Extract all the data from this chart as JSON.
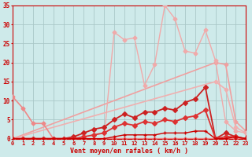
{
  "bg_color": "#ceeaea",
  "grid_color": "#aac8c8",
  "xlabel": "Vent moyen/en rafales ( km/h )",
  "xlabel_color": "#cc0000",
  "tick_color": "#cc0000",
  "xmin": 0,
  "xmax": 23,
  "ymin": 0,
  "ymax": 35,
  "yticks": [
    0,
    5,
    10,
    15,
    20,
    25,
    30,
    35
  ],
  "xticks": [
    0,
    1,
    2,
    3,
    4,
    5,
    6,
    7,
    8,
    9,
    10,
    11,
    12,
    13,
    14,
    15,
    16,
    17,
    18,
    19,
    20,
    21,
    22,
    23
  ],
  "series": [
    {
      "x": [
        0,
        20,
        21,
        22,
        23
      ],
      "y": [
        0,
        20,
        19.5,
        4.5,
        2
      ],
      "color": "#f0a0a0",
      "lw": 1.2,
      "marker": "D",
      "ms": 2.5,
      "zorder": 2
    },
    {
      "x": [
        0,
        20,
        21,
        22,
        23
      ],
      "y": [
        0,
        15,
        13,
        3,
        1.5
      ],
      "color": "#f0b0b0",
      "lw": 1.2,
      "marker": "D",
      "ms": 2.5,
      "zorder": 2
    },
    {
      "x": [
        0,
        1,
        2,
        3,
        9,
        10,
        11,
        12,
        13,
        14,
        15,
        16,
        17,
        18,
        19,
        20,
        21,
        22,
        23
      ],
      "y": [
        0,
        0,
        0,
        0,
        0,
        28,
        26,
        26.5,
        14,
        19.5,
        35,
        31.5,
        23,
        22.5,
        28.5,
        20.5,
        4.5,
        2,
        1.5
      ],
      "color": "#f0aaaa",
      "lw": 1.0,
      "marker": "D",
      "ms": 2.5,
      "zorder": 3
    },
    {
      "x": [
        0,
        1,
        2,
        3,
        4,
        5,
        6,
        7,
        8,
        9,
        10,
        11,
        12,
        13,
        14,
        15,
        16,
        17,
        18,
        19,
        20,
        21,
        22,
        23
      ],
      "y": [
        11,
        8,
        4,
        4,
        0,
        0,
        0,
        0,
        0,
        0,
        0,
        0,
        0,
        0,
        0,
        0,
        0,
        0,
        0,
        0,
        0,
        0,
        0,
        0
      ],
      "color": "#ee8888",
      "lw": 1.2,
      "marker": "D",
      "ms": 2.5,
      "zorder": 3
    },
    {
      "x": [
        0,
        1,
        2,
        3,
        4,
        5,
        6,
        7,
        8,
        9,
        10,
        11,
        12,
        13,
        14,
        15,
        16,
        17,
        18,
        19,
        20,
        21,
        22,
        23
      ],
      "y": [
        0,
        0,
        0,
        0,
        0,
        0,
        0.5,
        1.5,
        2.5,
        3,
        5,
        6.5,
        5.5,
        7,
        7,
        8,
        7.5,
        9.5,
        10.5,
        13.5,
        0,
        1.5,
        0.5,
        0
      ],
      "color": "#cc2222",
      "lw": 1.3,
      "marker": "D",
      "ms": 3,
      "zorder": 4
    },
    {
      "x": [
        0,
        1,
        2,
        3,
        4,
        5,
        6,
        7,
        8,
        9,
        10,
        11,
        12,
        13,
        14,
        15,
        16,
        17,
        18,
        19,
        20,
        21,
        22,
        23
      ],
      "y": [
        0,
        0,
        0,
        0,
        0,
        0,
        0,
        0.5,
        1,
        1.5,
        3,
        4,
        3.5,
        4.5,
        4,
        5,
        4.5,
        5.5,
        6,
        7.5,
        0,
        0.5,
        0.5,
        0
      ],
      "color": "#dd3333",
      "lw": 1.3,
      "marker": "D",
      "ms": 3,
      "zorder": 4
    },
    {
      "x": [
        0,
        1,
        2,
        3,
        4,
        5,
        6,
        7,
        8,
        9,
        10,
        11,
        12,
        13,
        14,
        15,
        16,
        17,
        18,
        19,
        20,
        21,
        22,
        23
      ],
      "y": [
        0,
        0,
        0,
        0,
        0,
        0,
        0,
        0,
        0,
        0,
        0.5,
        1,
        1,
        1,
        1,
        1.5,
        1.5,
        1.5,
        2,
        2,
        0,
        0,
        0.5,
        0
      ],
      "color": "#cc0000",
      "lw": 1.0,
      "marker": "+",
      "ms": 3.5,
      "zorder": 5
    },
    {
      "x": [
        0,
        1,
        2,
        3,
        4,
        5,
        6,
        7,
        8,
        9,
        10,
        11,
        12,
        13,
        14,
        15,
        16,
        17,
        18,
        19,
        20,
        21,
        22,
        23
      ],
      "y": [
        0,
        0,
        0,
        0,
        0,
        0,
        0,
        0,
        0,
        0,
        0,
        0,
        0,
        0,
        0,
        0,
        0,
        0,
        0,
        0,
        0,
        0,
        0,
        0
      ],
      "color": "#cc0000",
      "lw": 0.8,
      "marker": "+",
      "ms": 3,
      "zorder": 5
    }
  ]
}
